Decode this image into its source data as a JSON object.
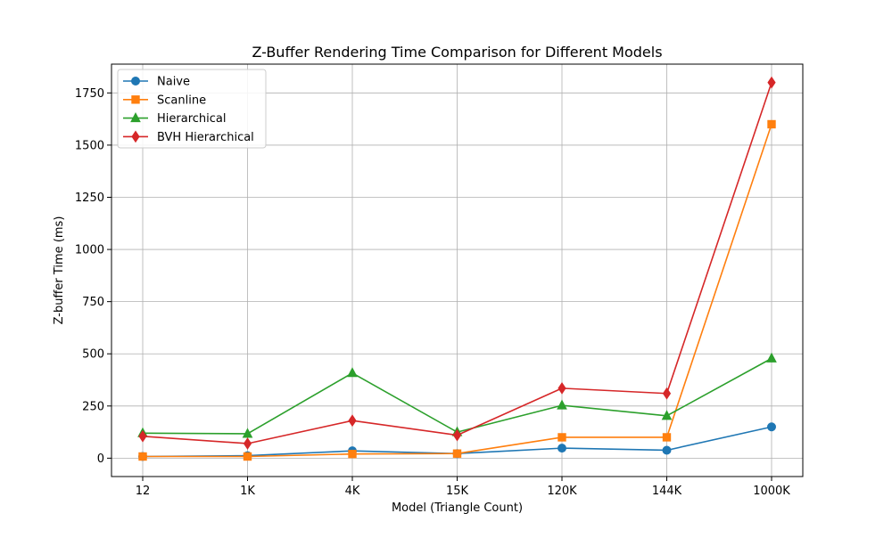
{
  "chart_data": {
    "type": "line",
    "title": "Z-Buffer Rendering Time Comparison for Different Models",
    "xlabel": "Model (Triangle Count)",
    "ylabel": "Z-buffer Time (ms)",
    "categories": [
      "12",
      "1K",
      "4K",
      "15K",
      "120K",
      "144K",
      "1000K"
    ],
    "ylim": [
      -88,
      1888
    ],
    "yticks": [
      0,
      250,
      500,
      750,
      1000,
      1250,
      1500,
      1750
    ],
    "grid": true,
    "legend": "upper-left",
    "series": [
      {
        "name": "Naive",
        "color": "#1f77b4",
        "marker": "circle",
        "values": [
          8,
          12,
          35,
          22,
          48,
          38,
          150
        ]
      },
      {
        "name": "Scanline",
        "color": "#ff7f0e",
        "marker": "square",
        "values": [
          8,
          8,
          20,
          22,
          100,
          100,
          1600
        ]
      },
      {
        "name": "Hierarchical",
        "color": "#2ca02c",
        "marker": "triangle",
        "values": [
          120,
          117,
          408,
          125,
          253,
          203,
          478
        ]
      },
      {
        "name": "BVH Hierarchical",
        "color": "#d62728",
        "marker": "diamond",
        "values": [
          105,
          70,
          180,
          110,
          335,
          310,
          1800
        ]
      }
    ]
  }
}
